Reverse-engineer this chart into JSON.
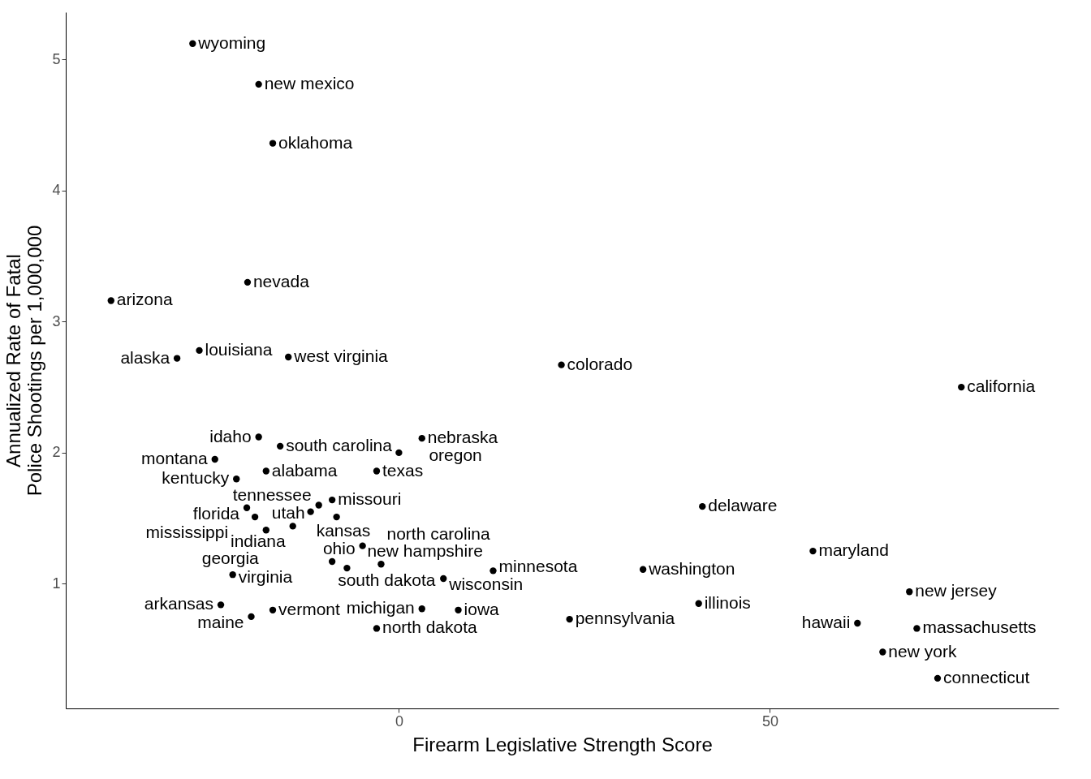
{
  "chart_data": {
    "type": "scatter",
    "xlabel": "Firearm Legislative Strength Score",
    "ylabel": "Annualized Rate of Fatal\nPolice Shootings per 1,000,000",
    "xlim": [
      -44.9,
      88.9
    ],
    "ylim": [
      0.05,
      5.36
    ],
    "xticks": [
      0,
      50
    ],
    "yticks": [
      1,
      2,
      3,
      4,
      5
    ],
    "grid": false,
    "legend": false,
    "marker": "circle",
    "series": [
      {
        "color": "#000000",
        "x": [
          -27.8,
          -18.9,
          -17.0,
          -20.4,
          -38.8,
          -26.9,
          -29.9,
          -14.9,
          21.9,
          75.8,
          -18.9,
          3.1,
          -16.0,
          0.0,
          -24.8,
          -17.9,
          -3.0,
          -21.9,
          -9.0,
          -20.5,
          -10.8,
          -11.9,
          -19.4,
          -8.4,
          -14.3,
          -17.9,
          -4.9,
          -9.0,
          -7.0,
          -2.4,
          12.7,
          6.0,
          32.9,
          -22.4,
          -24.0,
          -17.0,
          -19.9,
          3.1,
          8.0,
          -3.0,
          23.0,
          40.4,
          40.9,
          55.8,
          68.8,
          61.8,
          69.8,
          65.2,
          72.6
        ],
        "values": [
          5.12,
          4.81,
          4.36,
          3.3,
          3.16,
          2.78,
          2.72,
          2.73,
          2.67,
          2.5,
          2.12,
          2.11,
          2.05,
          2.0,
          1.95,
          1.86,
          1.86,
          1.8,
          1.64,
          1.58,
          1.6,
          1.55,
          1.51,
          1.51,
          1.44,
          1.41,
          1.29,
          1.17,
          1.12,
          1.15,
          1.1,
          1.04,
          1.11,
          1.07,
          0.84,
          0.8,
          0.75,
          0.81,
          0.8,
          0.66,
          0.73,
          0.85,
          1.59,
          1.25,
          0.94,
          0.7,
          0.66,
          0.48,
          0.28
        ]
      }
    ],
    "annotations": [
      {
        "text": "wyoming",
        "x": -27.8,
        "y": 5.12
      },
      {
        "text": "new mexico",
        "x": -18.9,
        "y": 4.81
      },
      {
        "text": "oklahoma",
        "x": -17.0,
        "y": 4.36
      },
      {
        "text": "nevada",
        "x": -20.4,
        "y": 3.3
      },
      {
        "text": "arizona",
        "x": -38.8,
        "y": 3.16
      },
      {
        "text": "louisiana",
        "x": -26.9,
        "y": 2.78
      },
      {
        "text": "alaska",
        "x": -29.9,
        "y": 2.72
      },
      {
        "text": "west virginia",
        "x": -14.9,
        "y": 2.73
      },
      {
        "text": "colorado",
        "x": 21.9,
        "y": 2.67
      },
      {
        "text": "california",
        "x": 75.8,
        "y": 2.5
      },
      {
        "text": "idaho",
        "x": -18.9,
        "y": 2.12
      },
      {
        "text": "nebraska",
        "x": 3.1,
        "y": 2.11
      },
      {
        "text": "south carolina",
        "x": -16.0,
        "y": 2.05
      },
      {
        "text": "oregon",
        "x": 0.0,
        "y": 2.0
      },
      {
        "text": "montana",
        "x": -24.8,
        "y": 1.95
      },
      {
        "text": "alabama",
        "x": -17.9,
        "y": 1.86
      },
      {
        "text": "texas",
        "x": -3.0,
        "y": 1.86
      },
      {
        "text": "kentucky",
        "x": -21.9,
        "y": 1.8
      },
      {
        "text": "missouri",
        "x": -9.0,
        "y": 1.64
      },
      {
        "text": "florida",
        "x": -20.5,
        "y": 1.58
      },
      {
        "text": "tennessee",
        "x": -10.8,
        "y": 1.6
      },
      {
        "text": "kansas",
        "x": -11.9,
        "y": 1.55
      },
      {
        "text": "mississippi",
        "x": -19.4,
        "y": 1.51
      },
      {
        "text": "utah",
        "x": -8.4,
        "y": 1.51
      },
      {
        "text": "indiana",
        "x": -14.3,
        "y": 1.44
      },
      {
        "text": "georgia",
        "x": -17.9,
        "y": 1.41
      },
      {
        "text": "ohio",
        "x": -4.9,
        "y": 1.29
      },
      {
        "text": "south dakota",
        "x": -9.0,
        "y": 1.17
      },
      {
        "text": "new hampshire",
        "x": -7.0,
        "y": 1.12
      },
      {
        "text": "north carolina",
        "x": -2.4,
        "y": 1.15
      },
      {
        "text": "minnesota",
        "x": 12.7,
        "y": 1.1
      },
      {
        "text": "wisconsin",
        "x": 6.0,
        "y": 1.04
      },
      {
        "text": "washington",
        "x": 32.9,
        "y": 1.11
      },
      {
        "text": "virginia",
        "x": -22.4,
        "y": 1.07
      },
      {
        "text": "arkansas",
        "x": -24.0,
        "y": 0.84
      },
      {
        "text": "vermont",
        "x": -17.0,
        "y": 0.8
      },
      {
        "text": "maine",
        "x": -19.9,
        "y": 0.75
      },
      {
        "text": "michigan",
        "x": 3.1,
        "y": 0.81
      },
      {
        "text": "iowa",
        "x": 8.0,
        "y": 0.8
      },
      {
        "text": "north dakota",
        "x": -3.0,
        "y": 0.66
      },
      {
        "text": "pennsylvania",
        "x": 23.0,
        "y": 0.73
      },
      {
        "text": "illinois",
        "x": 40.4,
        "y": 0.85
      },
      {
        "text": "delaware",
        "x": 40.9,
        "y": 1.59
      },
      {
        "text": "maryland",
        "x": 55.8,
        "y": 1.25
      },
      {
        "text": "new jersey",
        "x": 68.8,
        "y": 0.94
      },
      {
        "text": "hawaii",
        "x": 61.8,
        "y": 0.7
      },
      {
        "text": "massachusetts",
        "x": 69.8,
        "y": 0.66
      },
      {
        "text": "new york",
        "x": 65.2,
        "y": 0.48
      },
      {
        "text": "connecticut",
        "x": 72.6,
        "y": 0.28
      }
    ]
  }
}
